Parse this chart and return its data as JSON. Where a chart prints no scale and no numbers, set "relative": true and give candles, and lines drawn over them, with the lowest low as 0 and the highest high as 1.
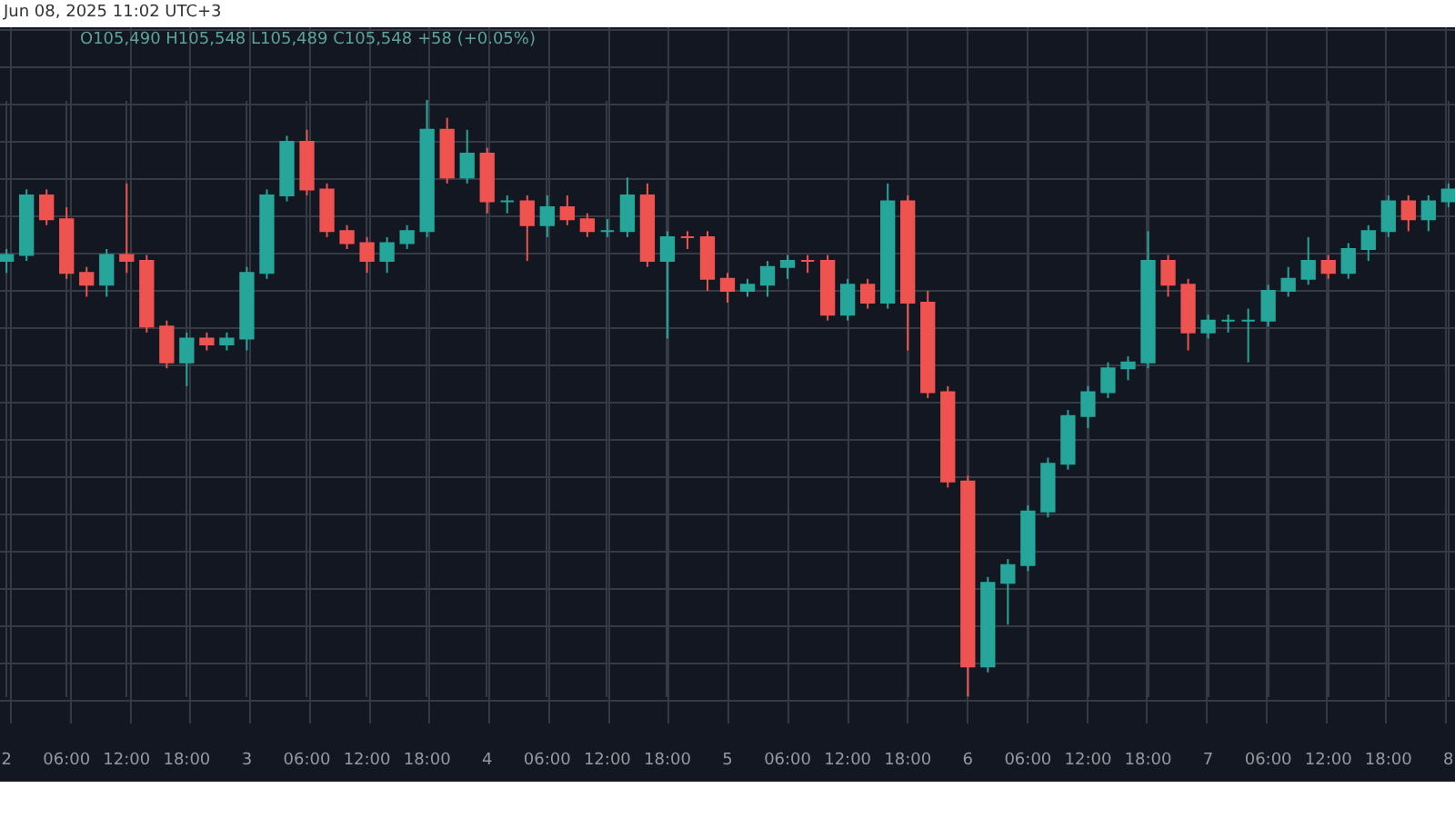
{
  "chart_data": {
    "type": "candlestick",
    "relative": true,
    "grid": true,
    "annotations": [
      "Jun 08, 2025 11:02 UTC+3",
      "O105,490 H105,548 L105,489 C105,548 +58 (+0.05%)"
    ],
    "categories": [
      "2",
      null,
      null,
      "06:00",
      null,
      null,
      "12:00",
      null,
      null,
      "18:00",
      null,
      null,
      "3",
      null,
      null,
      "06:00",
      null,
      null,
      "12:00",
      null,
      null,
      "18:00",
      null,
      null,
      "4",
      null,
      null,
      "06:00",
      null,
      null,
      "12:00",
      null,
      null,
      "18:00",
      null,
      null,
      "5",
      null,
      null,
      "06:00",
      null,
      null,
      "12:00",
      null,
      null,
      "18:00",
      null,
      null,
      "6",
      null,
      null,
      "06:00",
      null,
      null,
      "12:00",
      null,
      null,
      "18:00",
      null,
      null,
      "7",
      null,
      null,
      "06:00",
      null,
      null,
      "12:00",
      null,
      null,
      "18:00",
      null,
      null,
      "8"
    ],
    "ohlc": [
      [
        0.73,
        0.75,
        0.71,
        0.74
      ],
      [
        0.74,
        0.85,
        0.73,
        0.84
      ],
      [
        0.84,
        0.85,
        0.79,
        0.8
      ],
      [
        0.8,
        0.82,
        0.7,
        0.71
      ],
      [
        0.71,
        0.72,
        0.67,
        0.69
      ],
      [
        0.69,
        0.75,
        0.67,
        0.74
      ],
      [
        0.74,
        0.86,
        0.71,
        0.73
      ],
      [
        0.73,
        0.74,
        0.61,
        0.62
      ],
      [
        0.62,
        0.63,
        0.55,
        0.56
      ],
      [
        0.56,
        0.61,
        0.52,
        0.6
      ],
      [
        0.6,
        0.61,
        0.58,
        0.59
      ],
      [
        0.59,
        0.61,
        0.58,
        0.6
      ],
      [
        0.6,
        0.72,
        0.58,
        0.71
      ],
      [
        0.71,
        0.85,
        0.7,
        0.84
      ],
      [
        0.84,
        0.94,
        0.83,
        0.93
      ],
      [
        0.93,
        0.95,
        0.84,
        0.85
      ],
      [
        0.85,
        0.86,
        0.77,
        0.78
      ],
      [
        0.78,
        0.79,
        0.75,
        0.76
      ],
      [
        0.76,
        0.77,
        0.71,
        0.73
      ],
      [
        0.73,
        0.77,
        0.71,
        0.76
      ],
      [
        0.76,
        0.79,
        0.75,
        0.78
      ],
      [
        0.78,
        1.0,
        0.77,
        0.95
      ],
      [
        0.95,
        0.97,
        0.86,
        0.87
      ],
      [
        0.87,
        0.95,
        0.86,
        0.91
      ],
      [
        0.91,
        0.92,
        0.81,
        0.83
      ],
      [
        0.83,
        0.84,
        0.81,
        0.83
      ],
      [
        0.83,
        0.84,
        0.73,
        0.79
      ],
      [
        0.79,
        0.84,
        0.77,
        0.82
      ],
      [
        0.82,
        0.84,
        0.79,
        0.8
      ],
      [
        0.8,
        0.81,
        0.77,
        0.78
      ],
      [
        0.78,
        0.8,
        0.77,
        0.78
      ],
      [
        0.78,
        0.87,
        0.77,
        0.84
      ],
      [
        0.84,
        0.86,
        0.72,
        0.73
      ],
      [
        0.73,
        0.78,
        0.6,
        0.77
      ],
      [
        0.77,
        0.78,
        0.75,
        0.77
      ],
      [
        0.77,
        0.78,
        0.68,
        0.7
      ],
      [
        0.7,
        0.71,
        0.66,
        0.68
      ],
      [
        0.68,
        0.7,
        0.67,
        0.69
      ],
      [
        0.69,
        0.73,
        0.67,
        0.72
      ],
      [
        0.72,
        0.74,
        0.7,
        0.73
      ],
      [
        0.73,
        0.74,
        0.71,
        0.73
      ],
      [
        0.73,
        0.74,
        0.63,
        0.64
      ],
      [
        0.64,
        0.7,
        0.63,
        0.69
      ],
      [
        0.69,
        0.7,
        0.65,
        0.66
      ],
      [
        0.66,
        0.86,
        0.65,
        0.83
      ],
      [
        0.83,
        0.84,
        0.58,
        0.66
      ],
      [
        0.66,
        0.68,
        0.5,
        0.51
      ],
      [
        0.51,
        0.52,
        0.35,
        0.36
      ],
      [
        0.36,
        0.37,
        0,
        0.05
      ],
      [
        0.05,
        0.2,
        0.04,
        0.19
      ],
      [
        0.19,
        0.23,
        0.12,
        0.22
      ],
      [
        0.22,
        0.32,
        0.21,
        0.31
      ],
      [
        0.31,
        0.4,
        0.3,
        0.39
      ],
      [
        0.39,
        0.48,
        0.38,
        0.47
      ],
      [
        0.47,
        0.52,
        0.45,
        0.51
      ],
      [
        0.51,
        0.56,
        0.5,
        0.55
      ],
      [
        0.55,
        0.57,
        0.53,
        0.56
      ],
      [
        0.56,
        0.78,
        0.55,
        0.73
      ],
      [
        0.73,
        0.74,
        0.67,
        0.69
      ],
      [
        0.69,
        0.7,
        0.58,
        0.61
      ],
      [
        0.61,
        0.64,
        0.6,
        0.63
      ],
      [
        0.63,
        0.64,
        0.61,
        0.63
      ],
      [
        0.63,
        0.65,
        0.56,
        0.63
      ],
      [
        0.63,
        0.69,
        0.62,
        0.68
      ],
      [
        0.68,
        0.72,
        0.67,
        0.7
      ],
      [
        0.7,
        0.77,
        0.69,
        0.73
      ],
      [
        0.73,
        0.74,
        0.7,
        0.71
      ],
      [
        0.71,
        0.76,
        0.7,
        0.75
      ],
      [
        0.75,
        0.79,
        0.73,
        0.78
      ],
      [
        0.78,
        0.84,
        0.77,
        0.83
      ],
      [
        0.83,
        0.84,
        0.78,
        0.8
      ],
      [
        0.8,
        0.84,
        0.78,
        0.83
      ],
      [
        0.83,
        0.86,
        0.82,
        0.85
      ]
    ],
    "colors": [
      "#26a69a",
      "#26a69a",
      "#ef5350",
      "#ef5350",
      "#ef5350",
      "#26a69a",
      "#ef5350",
      "#ef5350",
      "#ef5350",
      "#26a69a",
      "#ef5350",
      "#26a69a",
      "#26a69a",
      "#26a69a",
      "#26a69a",
      "#ef5350",
      "#ef5350",
      "#ef5350",
      "#ef5350",
      "#26a69a",
      "#26a69a",
      "#26a69a",
      "#ef5350",
      "#26a69a",
      "#ef5350",
      "#26a69a",
      "#ef5350",
      "#26a69a",
      "#ef5350",
      "#ef5350",
      "#26a69a",
      "#26a69a",
      "#ef5350",
      "#26a69a",
      "#ef5350",
      "#ef5350",
      "#ef5350",
      "#26a69a",
      "#26a69a",
      "#26a69a",
      "#ef5350",
      "#ef5350",
      "#26a69a",
      "#ef5350",
      "#26a69a",
      "#ef5350",
      "#ef5350",
      "#ef5350",
      "#ef5350",
      "#26a69a",
      "#26a69a",
      "#26a69a",
      "#26a69a",
      "#26a69a",
      "#26a69a",
      "#26a69a",
      "#26a69a",
      "#26a69a",
      "#ef5350",
      "#ef5350",
      "#26a69a",
      "#26a69a",
      "#26a69a",
      "#26a69a",
      "#26a69a",
      "#26a69a",
      "#ef5350",
      "#26a69a",
      "#26a69a",
      "#26a69a",
      "#ef5350",
      "#26a69a",
      "#26a69a"
    ]
  }
}
